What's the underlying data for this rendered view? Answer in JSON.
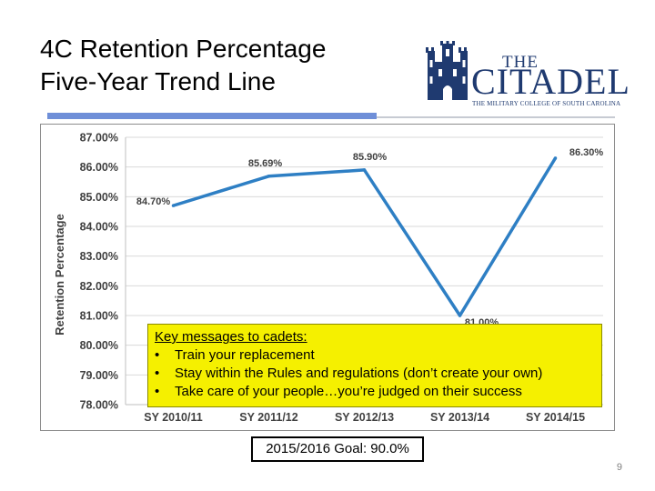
{
  "slide": {
    "title_line1": "4C Retention Percentage",
    "title_line2": "Five-Year Trend Line",
    "page_number": "9"
  },
  "logo": {
    "the": "THE",
    "name": "CITADEL",
    "subtitle": "THE MILITARY COLLEGE OF SOUTH CAROLINA",
    "color": "#1f3a70"
  },
  "colors": {
    "accent": "#6f8fd8",
    "line": "#2e7fc4",
    "key_box": "#f5f000"
  },
  "key_messages": {
    "title": "Key messages to cadets:",
    "items": [
      "Train your replacement",
      "Stay within the Rules and regulations (don’t create your own)",
      "Take care of your people…you’re judged on their  success"
    ]
  },
  "goal": "2015/2016 Goal: 90.0%",
  "chart_data": {
    "type": "line",
    "title": "",
    "xlabel": "",
    "ylabel": "Retention Percentage",
    "categories": [
      "SY 2010/11",
      "SY 2011/12",
      "SY 2012/13",
      "SY 2013/14",
      "SY 2014/15"
    ],
    "series": [
      {
        "values": [
          84.7,
          85.69,
          85.9,
          81.0,
          86.3
        ],
        "labels": [
          "84.70%",
          "85.69%",
          "85.90%",
          "81.00%",
          "86.30%"
        ]
      }
    ],
    "ylim": [
      78,
      87
    ],
    "yticks": [
      78,
      79,
      80,
      81,
      82,
      83,
      84,
      85,
      86,
      87
    ],
    "ytick_labels": [
      "78.00%",
      "79.00%",
      "80.00%",
      "81.00%",
      "82.00%",
      "83.00%",
      "84.00%",
      "85.00%",
      "86.00%",
      "87.00%"
    ],
    "grid": true,
    "legend": "none"
  }
}
